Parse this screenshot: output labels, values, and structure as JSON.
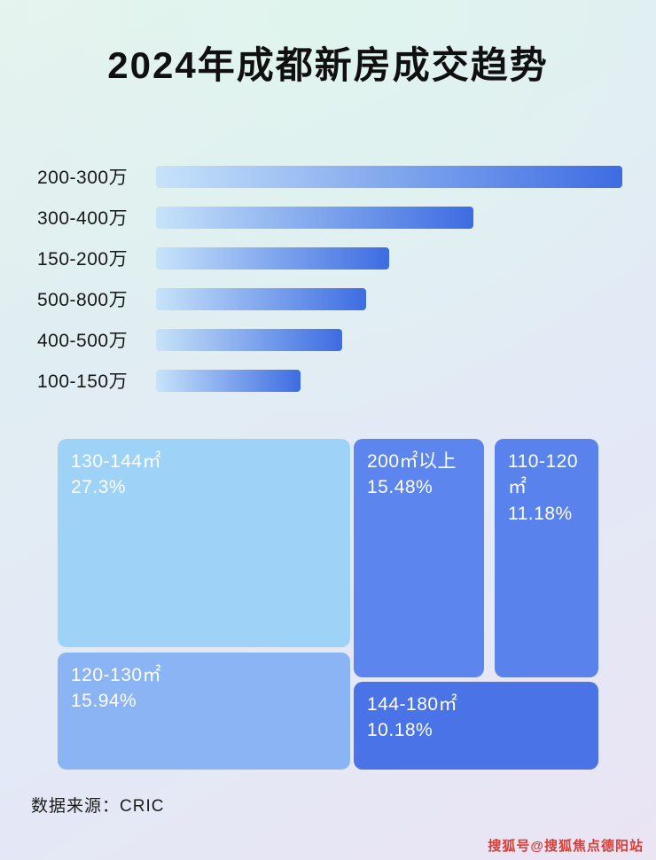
{
  "page": {
    "title": "2024年成都新房成交趋势",
    "source_label": "数据来源：CRIC",
    "watermark": "搜狐号@搜狐焦点德阳站"
  },
  "colors": {
    "bar_gradient_start": "#c7e3fa",
    "bar_gradient_end": "#3d6ce2",
    "label_color": "#171717",
    "watermark_color": "#e03a32",
    "background_top": "#e3f2ec",
    "background_bottom": "#eae4f3"
  },
  "chart_data": [
    {
      "type": "bar",
      "orientation": "horizontal",
      "title": "2024年成都新房成交趋势",
      "categories": [
        "200-300万",
        "300-400万",
        "150-200万",
        "500-800万",
        "400-500万",
        "100-150万"
      ],
      "values": [
        100,
        68,
        50,
        45,
        40,
        31
      ],
      "value_unit": "relative bar length, % of longest bar (no numeric labels shown)",
      "xlabel": "",
      "ylabel": "",
      "xlim": [
        0,
        100
      ],
      "grid": false,
      "legend": false
    },
    {
      "type": "treemap",
      "title": "",
      "blocks": [
        {
          "label": "130-144㎡",
          "value": "27.3%",
          "color": "#9ed2f6"
        },
        {
          "label": "200㎡以上",
          "value": "15.48%",
          "color": "#5c86ee"
        },
        {
          "label": "110-120㎡",
          "value": "11.18%",
          "color": "#5a82ed"
        },
        {
          "label": "120-130㎡",
          "value": "15.94%",
          "color": "#8ab4f3"
        },
        {
          "label": "144-180㎡",
          "value": "10.18%",
          "color": "#4a73e8"
        }
      ]
    }
  ]
}
